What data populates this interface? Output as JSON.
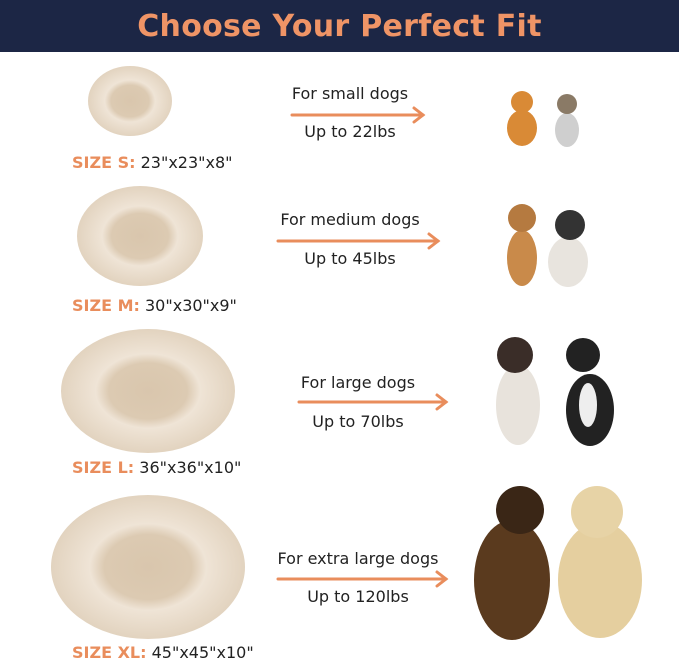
{
  "header": {
    "title": "Choose Your Perfect Fit"
  },
  "colors": {
    "header_bg": "#1c2645",
    "accent": "#ef9466",
    "bed": "#e7d8c4"
  },
  "sizes": [
    {
      "label": "SIZE S:",
      "dims": "23\"x23\"x8\"",
      "for": "For small dogs",
      "weight": "Up to 22lbs"
    },
    {
      "label": "SIZE M:",
      "dims": "30\"x30\"x9\"",
      "for": "For medium dogs",
      "weight": "Up to 45lbs"
    },
    {
      "label": "SIZE L:",
      "dims": "36\"x36\"x10\"",
      "for": "For large dogs",
      "weight": "Up to 70lbs"
    },
    {
      "label": "SIZE XL:",
      "dims": "45\"x45\"x10\"",
      "for": "For extra large dogs",
      "weight": "Up to 120lbs"
    }
  ]
}
